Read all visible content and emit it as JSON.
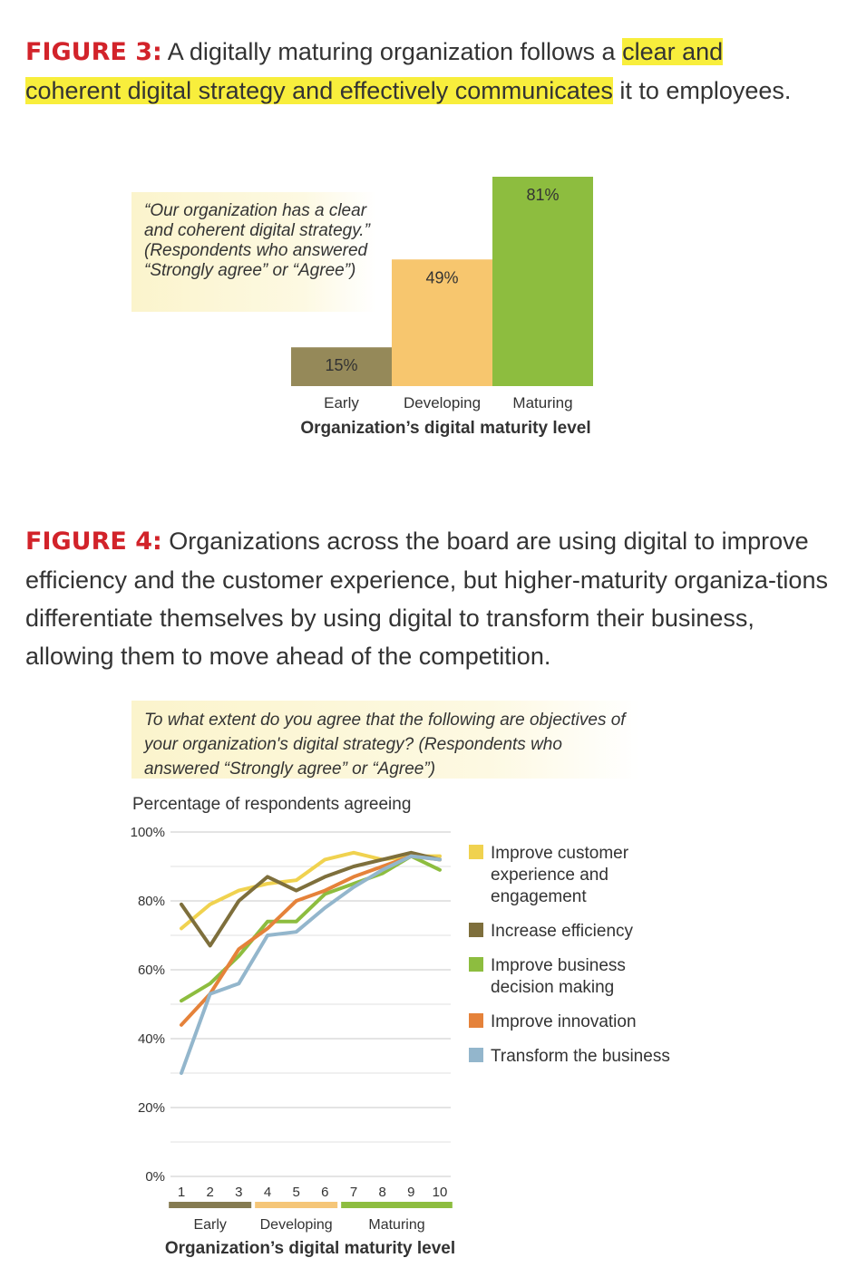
{
  "figure3": {
    "label": "FIGURE 3:",
    "caption_pre": " A digitally maturing organization follows a ",
    "caption_hl1": "clear and ",
    "caption_hl2": "coherent digital strategy and effectively communicates",
    "caption_post": " it to employees.",
    "quote": "“Our organization has a clear and coherent digital strategy.” (Respondents who answered “Strongly agree” or “Agree”)"
  },
  "figure4": {
    "label": "FIGURE 4:",
    "caption": " Organizations across the board are using digital to improve efficiency and the customer experience, but higher-maturity organiza-tions differentiate themselves by using digital to transform their business, allowing them to move ahead of the competition.",
    "quote": "To what extent do you agree that the following are objectives of your organization's digital strategy? (Respondents who answered “Strongly agree” or “Agree”)"
  },
  "chart_data": [
    {
      "type": "bar",
      "categories": [
        "Early",
        "Developing",
        "Maturing"
      ],
      "values": [
        15,
        49,
        81
      ],
      "value_labels": [
        "15%",
        "49%",
        "81%"
      ],
      "colors": [
        "#958959",
        "#f7c66e",
        "#8dbd3f"
      ],
      "xlabel": "Organization’s digital maturity level",
      "ylabel": "",
      "ylim": [
        0,
        81
      ]
    },
    {
      "type": "line",
      "title": "",
      "ylabel": "Percentage of respondents agreeing",
      "xlabel": "Organization’s digital maturity level",
      "x": [
        1,
        2,
        3,
        4,
        5,
        6,
        7,
        8,
        9,
        10
      ],
      "ylim": [
        0,
        100
      ],
      "yticks": [
        "0%",
        "20%",
        "40%",
        "60%",
        "80%",
        "100%"
      ],
      "grid": true,
      "legend_position": "right",
      "groups": [
        {
          "label": "Early",
          "from": 1,
          "to": 3,
          "color": "#857b51"
        },
        {
          "label": "Developing",
          "from": 4,
          "to": 6,
          "color": "#f5c678"
        },
        {
          "label": "Maturing",
          "from": 7,
          "to": 10,
          "color": "#8dbd3f"
        }
      ],
      "series": [
        {
          "name": "Improve customer experience and engagement",
          "color": "#f0d24f",
          "values": [
            72,
            79,
            83,
            85,
            86,
            92,
            94,
            92,
            93,
            93
          ]
        },
        {
          "name": "Increase efficiency",
          "color": "#7e6f3c",
          "values": [
            79,
            67,
            80,
            87,
            83,
            87,
            90,
            92,
            94,
            92
          ]
        },
        {
          "name": "Improve business decision making",
          "color": "#8dbd3f",
          "values": [
            51,
            56,
            64,
            74,
            74,
            82,
            85,
            88,
            93,
            89
          ]
        },
        {
          "name": "Improve innovation",
          "color": "#e5823a",
          "values": [
            44,
            53,
            66,
            72,
            80,
            83,
            87,
            90,
            93,
            92
          ]
        },
        {
          "name": "Transform the business",
          "color": "#93b6cc",
          "values": [
            30,
            53,
            56,
            70,
            71,
            78,
            84,
            89,
            93,
            92
          ]
        }
      ]
    }
  ]
}
